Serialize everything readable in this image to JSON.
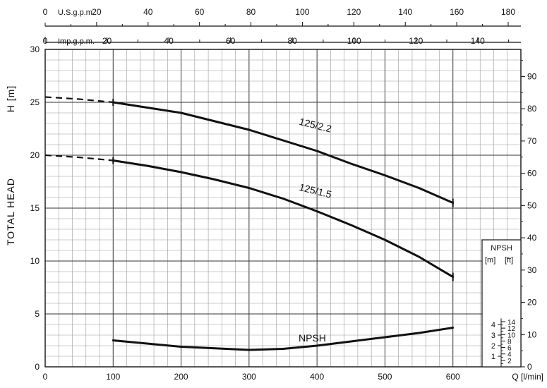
{
  "chart_data": {
    "type": "line",
    "x_axis": {
      "label": "Q [l/min]",
      "ticks": [
        0,
        100,
        200,
        300,
        400,
        500,
        600
      ],
      "range": [
        0,
        700
      ]
    },
    "y_axis_left": {
      "label_main": "TOTAL HEAD",
      "label_unit": "H  [m]",
      "ticks": [
        0,
        5,
        10,
        15,
        20,
        25,
        30
      ],
      "range": [
        0,
        30
      ]
    },
    "y_axis_right": {
      "label": "[ft]",
      "ticks": [
        0,
        10,
        20,
        30,
        40,
        50,
        60,
        70,
        80,
        90
      ],
      "range": [
        0,
        98.4
      ]
    },
    "top_axis_us": {
      "label": "U.S.g.p.m.",
      "zero_label": "0",
      "ticks": [
        20,
        40,
        60,
        80,
        100,
        120,
        140,
        160,
        180
      ],
      "conversion_lpm_per_unit": 3.785
    },
    "top_axis_imp": {
      "label": "Imp.g.p.m.",
      "zero_label": "0",
      "ticks": [
        20,
        40,
        60,
        80,
        100,
        120,
        140
      ],
      "conversion_lpm_per_unit": 4.546
    },
    "series": [
      {
        "name": "125/2.2",
        "solid": [
          [
            100,
            25.0
          ],
          [
            150,
            24.5
          ],
          [
            200,
            24.0
          ],
          [
            250,
            23.2
          ],
          [
            300,
            22.4
          ],
          [
            350,
            21.4
          ],
          [
            400,
            20.4
          ],
          [
            450,
            19.2
          ],
          [
            500,
            18.1
          ],
          [
            550,
            16.9
          ],
          [
            600,
            15.5
          ]
        ],
        "dashed": [
          [
            0,
            25.5
          ],
          [
            50,
            25.3
          ],
          [
            100,
            25.0
          ]
        ]
      },
      {
        "name": "125/1.5",
        "solid": [
          [
            100,
            19.5
          ],
          [
            150,
            19.0
          ],
          [
            200,
            18.4
          ],
          [
            250,
            17.7
          ],
          [
            300,
            16.9
          ],
          [
            350,
            15.9
          ],
          [
            400,
            14.7
          ],
          [
            450,
            13.4
          ],
          [
            500,
            12.0
          ],
          [
            550,
            10.4
          ],
          [
            600,
            8.5
          ]
        ],
        "dashed": [
          [
            0,
            20.0
          ],
          [
            50,
            19.8
          ],
          [
            100,
            19.5
          ]
        ]
      },
      {
        "name": "NPSH",
        "solid": [
          [
            100,
            2.5
          ],
          [
            150,
            2.2
          ],
          [
            200,
            1.9
          ],
          [
            250,
            1.75
          ],
          [
            300,
            1.6
          ],
          [
            350,
            1.7
          ],
          [
            400,
            2.0
          ],
          [
            450,
            2.4
          ],
          [
            500,
            2.8
          ],
          [
            550,
            3.2
          ],
          [
            600,
            3.7
          ]
        ],
        "dashed": []
      }
    ],
    "npsh_inset": {
      "title": "NPSH",
      "left_label": "[m]",
      "right_label": "[ft]",
      "m_ticks": [
        1,
        2,
        3,
        4
      ],
      "ft_ticks": [
        2,
        4,
        6,
        8,
        10,
        12,
        14
      ]
    },
    "grid": true,
    "colors": {
      "line": "#111111",
      "grid_minor": "#9a9a9a",
      "grid_major": "#333333"
    }
  }
}
